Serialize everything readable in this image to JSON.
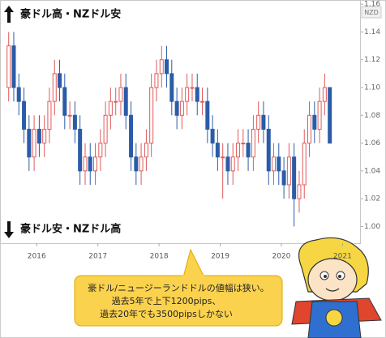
{
  "chart_data": {
    "type": "candlestick",
    "unit_label": "NZD",
    "annotations": [
      "豪ドル高・NZドル安",
      "豪ドル安・NZドル高"
    ],
    "note_lines": [
      "豪ドル/ニュージーランドドルの値幅は狭い。",
      "過去5年で上下1200pips、",
      "過去20年でも3500pipsしかない"
    ],
    "up_color": "#e05a5a",
    "down_color": "#2b5ca8",
    "x": [
      2015.542,
      2015.625,
      2015.708,
      2015.792,
      2015.875,
      2015.958,
      2016.042,
      2016.125,
      2016.208,
      2016.292,
      2016.375,
      2016.458,
      2016.542,
      2016.625,
      2016.708,
      2016.792,
      2016.875,
      2016.958,
      2017.042,
      2017.125,
      2017.208,
      2017.292,
      2017.375,
      2017.458,
      2017.542,
      2017.625,
      2017.708,
      2017.792,
      2017.875,
      2017.958,
      2018.042,
      2018.125,
      2018.208,
      2018.292,
      2018.375,
      2018.458,
      2018.542,
      2018.625,
      2018.708,
      2018.792,
      2018.875,
      2018.958,
      2019.042,
      2019.125,
      2019.208,
      2019.292,
      2019.375,
      2019.458,
      2019.542,
      2019.625,
      2019.708,
      2019.792,
      2019.875,
      2019.958,
      2020.042,
      2020.125,
      2020.208,
      2020.292,
      2020.375,
      2020.458,
      2020.542,
      2020.625,
      2020.708,
      2020.792
    ],
    "open": [
      1.1,
      1.13,
      1.1,
      1.09,
      1.07,
      1.05,
      1.07,
      1.06,
      1.07,
      1.09,
      1.11,
      1.1,
      1.08,
      1.08,
      1.07,
      1.04,
      1.05,
      1.04,
      1.05,
      1.06,
      1.08,
      1.09,
      1.09,
      1.1,
      1.08,
      1.05,
      1.04,
      1.05,
      1.06,
      1.1,
      1.11,
      1.12,
      1.11,
      1.09,
      1.08,
      1.09,
      1.1,
      1.1,
      1.09,
      1.09,
      1.07,
      1.06,
      1.05,
      1.05,
      1.04,
      1.05,
      1.06,
      1.06,
      1.05,
      1.07,
      1.08,
      1.07,
      1.04,
      1.05,
      1.04,
      1.03,
      1.05,
      1.02,
      1.03,
      1.06,
      1.08,
      1.07,
      1.09,
      1.1
    ],
    "high": [
      1.14,
      1.14,
      1.11,
      1.1,
      1.08,
      1.08,
      1.08,
      1.08,
      1.1,
      1.12,
      1.12,
      1.11,
      1.09,
      1.09,
      1.08,
      1.06,
      1.06,
      1.06,
      1.07,
      1.09,
      1.1,
      1.1,
      1.11,
      1.11,
      1.09,
      1.06,
      1.06,
      1.07,
      1.11,
      1.12,
      1.13,
      1.13,
      1.12,
      1.1,
      1.1,
      1.11,
      1.11,
      1.11,
      1.1,
      1.1,
      1.08,
      1.07,
      1.06,
      1.06,
      1.06,
      1.07,
      1.07,
      1.07,
      1.08,
      1.09,
      1.09,
      1.08,
      1.06,
      1.06,
      1.05,
      1.06,
      1.06,
      1.04,
      1.07,
      1.09,
      1.09,
      1.1,
      1.11,
      1.1
    ],
    "low": [
      1.09,
      1.09,
      1.08,
      1.06,
      1.04,
      1.04,
      1.05,
      1.05,
      1.06,
      1.08,
      1.09,
      1.07,
      1.07,
      1.06,
      1.03,
      1.03,
      1.03,
      1.03,
      1.04,
      1.05,
      1.07,
      1.08,
      1.08,
      1.07,
      1.04,
      1.03,
      1.03,
      1.04,
      1.05,
      1.09,
      1.1,
      1.1,
      1.08,
      1.07,
      1.07,
      1.08,
      1.09,
      1.08,
      1.08,
      1.06,
      1.05,
      1.04,
      1.02,
      1.03,
      1.03,
      1.04,
      1.05,
      1.04,
      1.04,
      1.06,
      1.06,
      1.03,
      1.03,
      1.03,
      1.02,
      1.02,
      1.0,
      1.01,
      1.02,
      1.05,
      1.06,
      1.06,
      1.08,
      1.06
    ],
    "close": [
      1.13,
      1.1,
      1.09,
      1.07,
      1.05,
      1.07,
      1.06,
      1.07,
      1.09,
      1.11,
      1.1,
      1.08,
      1.08,
      1.07,
      1.04,
      1.05,
      1.04,
      1.05,
      1.06,
      1.08,
      1.09,
      1.09,
      1.1,
      1.08,
      1.05,
      1.04,
      1.05,
      1.06,
      1.1,
      1.11,
      1.12,
      1.11,
      1.09,
      1.08,
      1.09,
      1.1,
      1.1,
      1.09,
      1.09,
      1.07,
      1.06,
      1.05,
      1.05,
      1.04,
      1.05,
      1.06,
      1.06,
      1.05,
      1.07,
      1.08,
      1.07,
      1.04,
      1.05,
      1.04,
      1.03,
      1.05,
      1.02,
      1.03,
      1.06,
      1.08,
      1.07,
      1.09,
      1.1,
      1.06
    ],
    "xlim": [
      2015.4,
      2021.3
    ],
    "xticks": [
      2016,
      2017,
      2018,
      2019,
      2020,
      2021
    ],
    "ylim": [
      0.988,
      1.163
    ],
    "yticks": [
      {
        "value": 1.0,
        "label": "1.00"
      },
      {
        "value": 1.02,
        "label": "1.02"
      },
      {
        "value": 1.04,
        "label": "1.04"
      },
      {
        "value": 1.06,
        "label": "1.06"
      },
      {
        "value": 1.08,
        "label": "1.08"
      },
      {
        "value": 1.1,
        "label": "1.10"
      },
      {
        "value": 1.12,
        "label": "1.12"
      },
      {
        "value": 1.14,
        "label": "1.14"
      },
      {
        "value": 1.16,
        "label": "1.16"
      }
    ]
  }
}
